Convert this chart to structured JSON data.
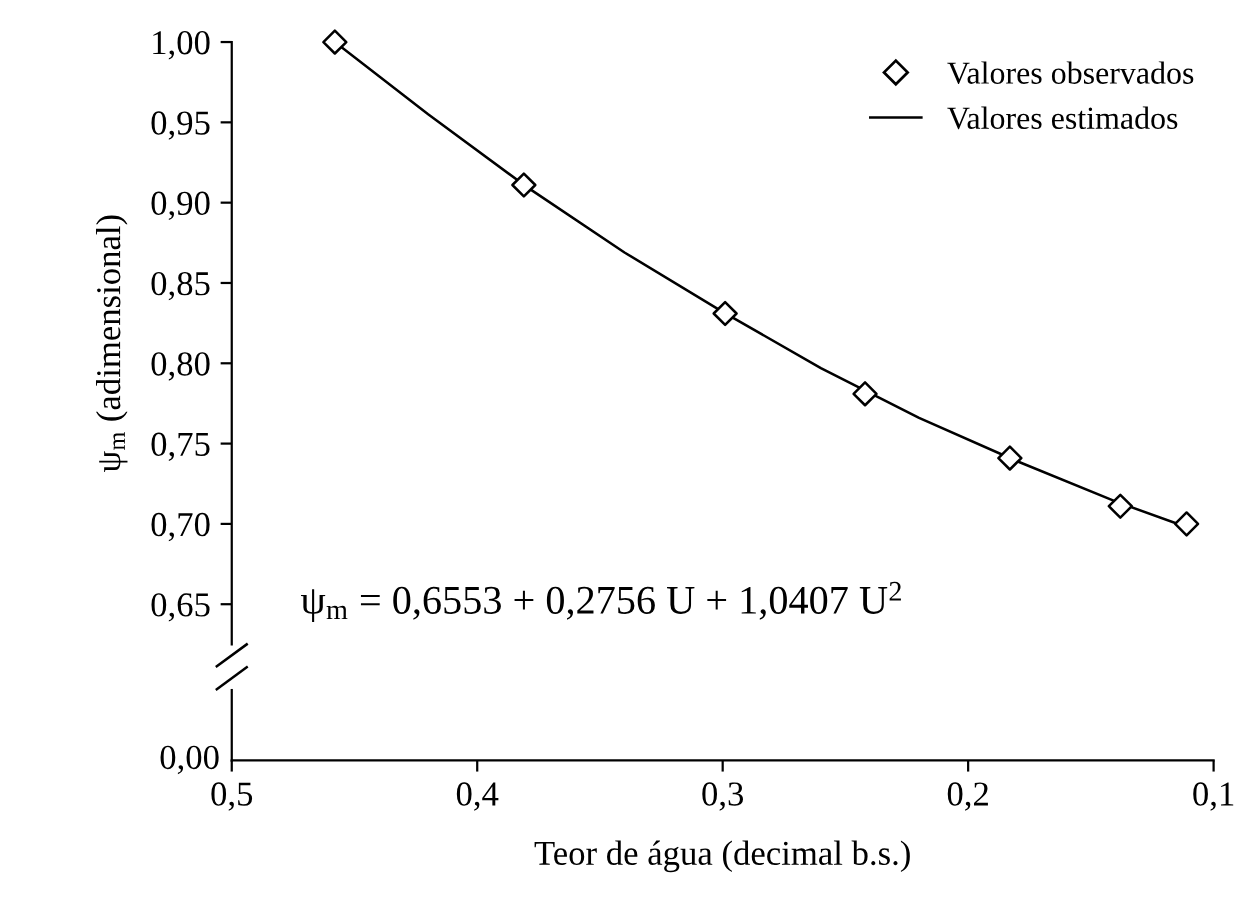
{
  "chart_data": {
    "type": "scatter",
    "ylabel": "ψ$_{m}$ (adimensional)",
    "xlabel": "Teor de água (decimal b.s.)",
    "xlim": [
      0.5,
      0.1
    ],
    "ylim": [
      0.625,
      1.0
    ],
    "xticks": [
      {
        "value": 0.5,
        "label": "0,5"
      },
      {
        "value": 0.4,
        "label": "0,4"
      },
      {
        "value": 0.3,
        "label": "0,3"
      },
      {
        "value": 0.2,
        "label": "0,2"
      },
      {
        "value": 0.1,
        "label": "0,1"
      }
    ],
    "yticks": [
      {
        "value": 0.65,
        "label": "0,65"
      },
      {
        "value": 0.7,
        "label": "0,70"
      },
      {
        "value": 0.75,
        "label": "0,75"
      },
      {
        "value": 0.8,
        "label": "0,80"
      },
      {
        "value": 0.85,
        "label": "0,85"
      },
      {
        "value": 0.9,
        "label": "0,90"
      },
      {
        "value": 0.95,
        "label": "0,95"
      },
      {
        "value": 1.0,
        "label": "1,00"
      }
    ],
    "legend": "top right",
    "annotations": [
      "ψ$_{m}$ = 0,6553 + 0,2756 U + 1,0407 U$^{2}$",
      "0,00"
    ],
    "series": [
      {
        "name": "Valores observados",
        "type": "scatter",
        "marker": "diamond",
        "color": "#000000",
        "x": [
          0.458,
          0.381,
          0.299,
          0.242,
          0.183,
          0.138,
          0.111
        ],
        "values": [
          1.0,
          0.911,
          0.831,
          0.781,
          0.741,
          0.711,
          0.7
        ]
      },
      {
        "name": "Valores estimados",
        "type": "line",
        "marker": "none",
        "line_style": "solid",
        "color": "#000000",
        "x": [
          0.458,
          0.42,
          0.38,
          0.34,
          0.3,
          0.26,
          0.22,
          0.18,
          0.14,
          0.111
        ],
        "values": [
          1.0,
          0.955,
          0.91,
          0.869,
          0.832,
          0.797,
          0.766,
          0.739,
          0.714,
          0.698
        ]
      }
    ]
  }
}
